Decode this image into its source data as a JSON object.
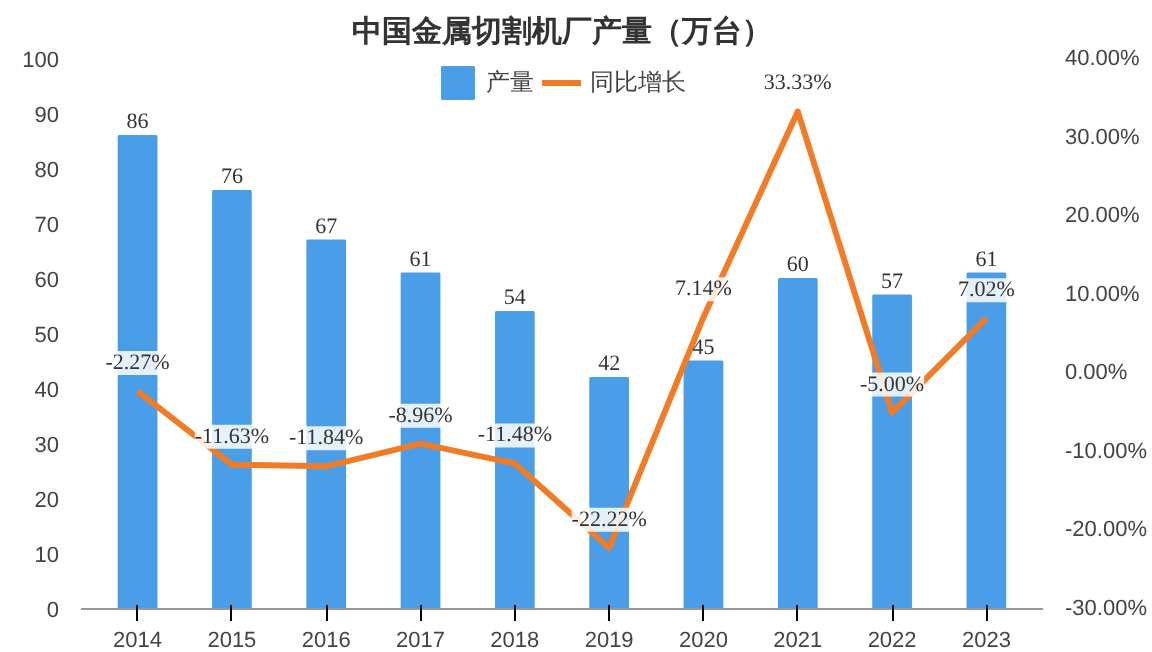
{
  "chart_data": {
    "type": "bar",
    "title": "中国金属切割机厂产量（万台）",
    "categories": [
      "2014",
      "2015",
      "2016",
      "2017",
      "2018",
      "2019",
      "2020",
      "2021",
      "2022",
      "2023"
    ],
    "series": [
      {
        "name": "产量",
        "color": "#4a9ee8",
        "values": [
          86,
          76,
          67,
          61,
          54,
          42,
          45,
          60,
          57,
          61
        ]
      },
      {
        "name": "同比增长",
        "type": "line",
        "axis": "y2",
        "color": "#f07c28",
        "values": [
          -2.27,
          -11.63,
          -11.84,
          -8.96,
          -11.48,
          -22.22,
          7.14,
          33.33,
          -5.0,
          7.02
        ],
        "value_labels": [
          "-2.27%",
          "-11.63%",
          "-11.84%",
          "-8.96%",
          "-11.48%",
          "-22.22%",
          "7.14%",
          "33.33%",
          "-5.00%",
          "7.02%"
        ]
      }
    ],
    "ylim": [
      0,
      100
    ],
    "yticks": [
      0,
      10,
      20,
      30,
      40,
      50,
      60,
      70,
      80,
      90,
      100
    ],
    "y2lim": [
      -30,
      40
    ],
    "y2ticks": [
      {
        "value": -30,
        "label": "-30.00%"
      },
      {
        "value": -20,
        "label": "-20.00%"
      },
      {
        "value": -10,
        "label": "-10.00%"
      },
      {
        "value": 0,
        "label": "0.00%"
      },
      {
        "value": 10,
        "label": "10.00%"
      },
      {
        "value": 20,
        "label": "20.00%"
      },
      {
        "value": 30,
        "label": "30.00%"
      },
      {
        "value": 40,
        "label": "40.00%"
      }
    ],
    "data_labels": true,
    "legend": "top",
    "grid": false,
    "marker": "none",
    "line_style": "solid"
  }
}
